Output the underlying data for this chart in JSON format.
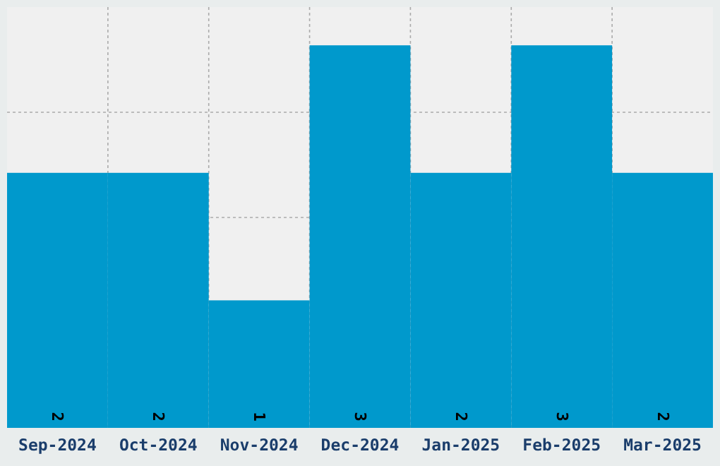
{
  "chart_data": {
    "type": "bar",
    "categories": [
      "Sep-2024",
      "Oct-2024",
      "Nov-2024",
      "Dec-2024",
      "Jan-2025",
      "Feb-2025",
      "Mar-2025"
    ],
    "values": [
      2,
      2,
      1,
      3,
      2,
      3,
      2
    ],
    "color": "#0099cc",
    "ylim": [
      0,
      3.3
    ],
    "yticks": [
      {
        "value": 0.825,
        "label": null
      },
      {
        "value": 1.65,
        "label": null
      },
      {
        "value": 2.475,
        "label": null
      }
    ],
    "tick_labels": "x",
    "grid": true,
    "data_labels": true
  }
}
